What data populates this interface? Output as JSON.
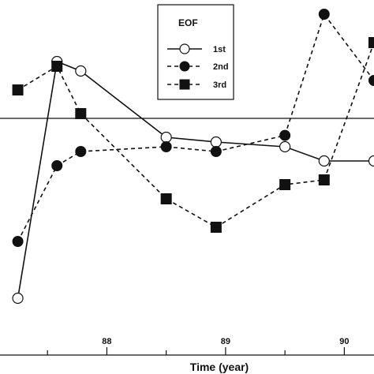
{
  "chart_data": {
    "type": "line",
    "title": "",
    "xlabel": "Time (year)",
    "ylabel": "",
    "xlim": [
      87.1,
      90.25
    ],
    "ylim": [
      -2.5,
      1.25
    ],
    "xticks": [
      88,
      89,
      90
    ],
    "xtick_labels": [
      "88",
      "89",
      "90"
    ],
    "zero_line": 0,
    "grid": false,
    "legend": {
      "title": "EOF",
      "placement": "top-center"
    },
    "series": [
      {
        "name": "1st",
        "marker": "open-circle",
        "line": "solid",
        "x": [
          87.25,
          87.58,
          87.78,
          88.5,
          88.92,
          89.5,
          89.83,
          90.25
        ],
        "y": [
          -1.9,
          0.6,
          0.5,
          -0.2,
          -0.25,
          -0.3,
          -0.45,
          -0.45
        ]
      },
      {
        "name": "2nd",
        "marker": "filled-circle",
        "line": "dashed",
        "x": [
          87.25,
          87.58,
          87.78,
          88.5,
          88.92,
          89.5,
          89.83,
          90.25
        ],
        "y": [
          -1.3,
          -0.5,
          -0.35,
          -0.3,
          -0.35,
          -0.18,
          1.1,
          0.4
        ]
      },
      {
        "name": "3rd",
        "marker": "filled-square",
        "line": "dashed",
        "x": [
          87.25,
          87.58,
          87.78,
          88.5,
          88.92,
          89.5,
          89.83,
          90.25
        ],
        "y": [
          0.3,
          0.55,
          0.05,
          -0.85,
          -1.15,
          -0.7,
          -0.65,
          0.8
        ]
      }
    ]
  }
}
